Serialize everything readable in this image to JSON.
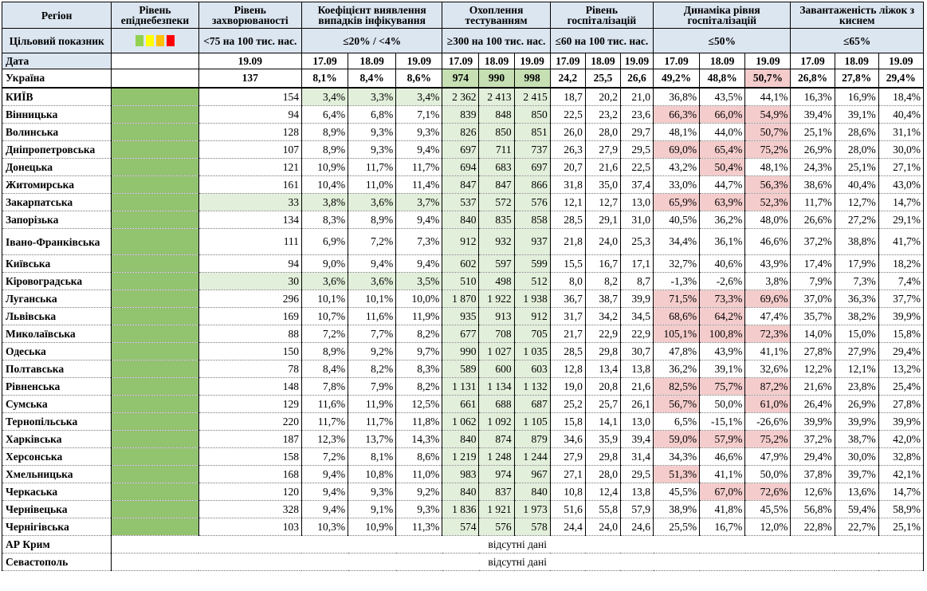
{
  "headers": {
    "region": "Регіон",
    "epid_level": "Рівень епіднебезпеки",
    "morbidity": "Рівень захворюваності",
    "detection": "Коефіцієнт виявлення випадків інфікування",
    "testing": "Охоплення тестуванням",
    "hosp_level": "Рівень госпіталізацій",
    "hosp_dyn": "Динаміка рівня госпіталізацій",
    "oxygen": "Завантаженість ліжок з киснем"
  },
  "targets": {
    "label": "Цільовий показник",
    "legend_colors": [
      "#92d050",
      "#ffff00",
      "#ffc000",
      "#ff0000"
    ],
    "morbidity": "<75 на 100 тис. нас.",
    "detection": "≤20% / <4%",
    "testing": "≥300 на 100 тис. нас.",
    "hosp_level": "≤60 на 100 тис. нас.",
    "hosp_dyn": "≤50%",
    "oxygen": "≤65%"
  },
  "dates": {
    "label": "Дата",
    "morbidity": "19.09",
    "d1": "17.09",
    "d2": "18.09",
    "d3": "19.09"
  },
  "ukraine": {
    "name": "Україна",
    "morbidity": "137",
    "detection": [
      "8,1%",
      "8,4%",
      "8,6%"
    ],
    "testing": [
      "974",
      "990",
      "998"
    ],
    "hosp_level": [
      "24,2",
      "25,5",
      "26,6"
    ],
    "hosp_dyn": [
      "49,2%",
      "48,8%",
      "50,7%"
    ],
    "oxygen": [
      "26,8%",
      "27,8%",
      "29,4%"
    ]
  },
  "rows": [
    {
      "name": "КИЇВ",
      "morbidity": "154",
      "detection": [
        "3,4%",
        "3,3%",
        "3,4%"
      ],
      "testing": [
        "2 362",
        "2 413",
        "2 415"
      ],
      "hosp_level": [
        "18,7",
        "20,2",
        "21,0"
      ],
      "hosp_dyn": [
        "36,8%",
        "43,5%",
        "44,1%"
      ],
      "oxygen": [
        "16,3%",
        "16,9%",
        "18,4%"
      ]
    },
    {
      "name": "Вінницька",
      "morbidity": "94",
      "detection": [
        "6,4%",
        "6,8%",
        "7,1%"
      ],
      "testing": [
        "839",
        "848",
        "850"
      ],
      "hosp_level": [
        "22,5",
        "23,2",
        "23,6"
      ],
      "hosp_dyn": [
        "66,3%",
        "66,0%",
        "54,9%"
      ],
      "oxygen": [
        "39,4%",
        "39,1%",
        "40,4%"
      ]
    },
    {
      "name": "Волинська",
      "morbidity": "128",
      "detection": [
        "8,9%",
        "9,3%",
        "9,3%"
      ],
      "testing": [
        "826",
        "850",
        "851"
      ],
      "hosp_level": [
        "26,0",
        "28,0",
        "29,7"
      ],
      "hosp_dyn": [
        "48,1%",
        "44,0%",
        "50,7%"
      ],
      "oxygen": [
        "25,1%",
        "28,6%",
        "31,1%"
      ]
    },
    {
      "name": "Дніпропетровська",
      "morbidity": "107",
      "detection": [
        "8,9%",
        "9,3%",
        "9,4%"
      ],
      "testing": [
        "697",
        "711",
        "737"
      ],
      "hosp_level": [
        "26,3",
        "27,9",
        "29,5"
      ],
      "hosp_dyn": [
        "69,0%",
        "65,4%",
        "75,2%"
      ],
      "oxygen": [
        "26,9%",
        "28,0%",
        "30,0%"
      ]
    },
    {
      "name": "Донецька",
      "morbidity": "121",
      "detection": [
        "10,9%",
        "11,7%",
        "11,7%"
      ],
      "testing": [
        "694",
        "683",
        "697"
      ],
      "hosp_level": [
        "20,7",
        "21,6",
        "22,5"
      ],
      "hosp_dyn": [
        "43,2%",
        "50,4%",
        "48,1%"
      ],
      "oxygen": [
        "24,3%",
        "25,1%",
        "27,1%"
      ]
    },
    {
      "name": "Житомирська",
      "morbidity": "161",
      "detection": [
        "10,4%",
        "11,0%",
        "11,4%"
      ],
      "testing": [
        "847",
        "847",
        "866"
      ],
      "hosp_level": [
        "31,8",
        "35,0",
        "37,4"
      ],
      "hosp_dyn": [
        "33,0%",
        "44,7%",
        "56,3%"
      ],
      "oxygen": [
        "38,6%",
        "40,4%",
        "43,0%"
      ]
    },
    {
      "name": "Закарпатська",
      "morbidity": "33",
      "detection": [
        "3,8%",
        "3,6%",
        "3,7%"
      ],
      "testing": [
        "537",
        "572",
        "576"
      ],
      "hosp_level": [
        "12,1",
        "12,7",
        "13,0"
      ],
      "hosp_dyn": [
        "65,9%",
        "63,9%",
        "52,3%"
      ],
      "oxygen": [
        "11,7%",
        "12,7%",
        "14,7%"
      ]
    },
    {
      "name": "Запорізька",
      "morbidity": "134",
      "detection": [
        "8,3%",
        "8,9%",
        "9,4%"
      ],
      "testing": [
        "840",
        "835",
        "858"
      ],
      "hosp_level": [
        "28,5",
        "29,1",
        "31,0"
      ],
      "hosp_dyn": [
        "40,5%",
        "36,2%",
        "48,0%"
      ],
      "oxygen": [
        "26,6%",
        "27,2%",
        "29,1%"
      ]
    },
    {
      "name": "Івано-Франківська",
      "morbidity": "111",
      "detection": [
        "6,9%",
        "7,2%",
        "7,3%"
      ],
      "testing": [
        "912",
        "932",
        "937"
      ],
      "hosp_level": [
        "21,8",
        "24,0",
        "25,3"
      ],
      "hosp_dyn": [
        "34,4%",
        "36,1%",
        "46,6%"
      ],
      "oxygen": [
        "37,2%",
        "38,8%",
        "41,7%"
      ]
    },
    {
      "name": "Київська",
      "morbidity": "94",
      "detection": [
        "9,0%",
        "9,4%",
        "9,4%"
      ],
      "testing": [
        "602",
        "597",
        "599"
      ],
      "hosp_level": [
        "15,5",
        "16,7",
        "17,1"
      ],
      "hosp_dyn": [
        "32,7%",
        "40,6%",
        "43,9%"
      ],
      "oxygen": [
        "17,4%",
        "17,9%",
        "18,2%"
      ]
    },
    {
      "name": "Кіровоградська",
      "morbidity": "30",
      "detection": [
        "3,6%",
        "3,6%",
        "3,5%"
      ],
      "testing": [
        "510",
        "498",
        "512"
      ],
      "hosp_level": [
        "8,0",
        "8,2",
        "8,7"
      ],
      "hosp_dyn": [
        "-1,3%",
        "-2,6%",
        "3,8%"
      ],
      "oxygen": [
        "7,9%",
        "7,3%",
        "7,4%"
      ]
    },
    {
      "name": "Луганська",
      "morbidity": "296",
      "detection": [
        "10,1%",
        "10,1%",
        "10,0%"
      ],
      "testing": [
        "1 870",
        "1 922",
        "1 938"
      ],
      "hosp_level": [
        "36,7",
        "38,7",
        "39,9"
      ],
      "hosp_dyn": [
        "71,5%",
        "73,3%",
        "69,6%"
      ],
      "oxygen": [
        "37,0%",
        "36,3%",
        "37,7%"
      ]
    },
    {
      "name": "Львівська",
      "morbidity": "169",
      "detection": [
        "10,7%",
        "11,6%",
        "11,9%"
      ],
      "testing": [
        "935",
        "913",
        "912"
      ],
      "hosp_level": [
        "31,7",
        "34,2",
        "34,5"
      ],
      "hosp_dyn": [
        "68,6%",
        "64,2%",
        "47,4%"
      ],
      "oxygen": [
        "35,7%",
        "38,2%",
        "39,9%"
      ]
    },
    {
      "name": "Миколаївська",
      "morbidity": "88",
      "detection": [
        "7,2%",
        "7,7%",
        "8,2%"
      ],
      "testing": [
        "677",
        "708",
        "705"
      ],
      "hosp_level": [
        "21,7",
        "22,9",
        "22,9"
      ],
      "hosp_dyn": [
        "105,1%",
        "100,8%",
        "72,3%"
      ],
      "oxygen": [
        "14,0%",
        "15,0%",
        "15,8%"
      ]
    },
    {
      "name": "Одеська",
      "morbidity": "150",
      "detection": [
        "8,9%",
        "9,2%",
        "9,7%"
      ],
      "testing": [
        "990",
        "1 027",
        "1 035"
      ],
      "hosp_level": [
        "28,5",
        "29,8",
        "30,7"
      ],
      "hosp_dyn": [
        "47,8%",
        "43,9%",
        "41,1%"
      ],
      "oxygen": [
        "27,8%",
        "27,9%",
        "29,4%"
      ]
    },
    {
      "name": "Полтавська",
      "morbidity": "78",
      "detection": [
        "8,4%",
        "8,2%",
        "8,3%"
      ],
      "testing": [
        "589",
        "600",
        "603"
      ],
      "hosp_level": [
        "12,8",
        "13,4",
        "13,8"
      ],
      "hosp_dyn": [
        "36,2%",
        "39,1%",
        "32,6%"
      ],
      "oxygen": [
        "12,2%",
        "12,1%",
        "13,2%"
      ]
    },
    {
      "name": "Рівненська",
      "morbidity": "148",
      "detection": [
        "7,8%",
        "7,9%",
        "8,2%"
      ],
      "testing": [
        "1 131",
        "1 134",
        "1 132"
      ],
      "hosp_level": [
        "19,0",
        "20,8",
        "21,6"
      ],
      "hosp_dyn": [
        "82,5%",
        "75,7%",
        "87,2%"
      ],
      "oxygen": [
        "21,6%",
        "23,8%",
        "25,4%"
      ]
    },
    {
      "name": "Сумська",
      "morbidity": "129",
      "detection": [
        "11,6%",
        "11,9%",
        "12,5%"
      ],
      "testing": [
        "661",
        "688",
        "687"
      ],
      "hosp_level": [
        "25,2",
        "25,7",
        "26,1"
      ],
      "hosp_dyn": [
        "56,7%",
        "50,0%",
        "61,0%"
      ],
      "oxygen": [
        "26,4%",
        "26,9%",
        "27,8%"
      ]
    },
    {
      "name": "Тернопільська",
      "morbidity": "220",
      "detection": [
        "11,7%",
        "11,7%",
        "11,8%"
      ],
      "testing": [
        "1 062",
        "1 092",
        "1 105"
      ],
      "hosp_level": [
        "15,8",
        "14,1",
        "13,0"
      ],
      "hosp_dyn": [
        "6,5%",
        "-15,1%",
        "-26,6%"
      ],
      "oxygen": [
        "39,9%",
        "39,9%",
        "39,9%"
      ]
    },
    {
      "name": "Харківська",
      "morbidity": "187",
      "detection": [
        "12,3%",
        "13,7%",
        "14,3%"
      ],
      "testing": [
        "840",
        "874",
        "879"
      ],
      "hosp_level": [
        "34,6",
        "35,9",
        "39,4"
      ],
      "hosp_dyn": [
        "59,0%",
        "57,9%",
        "75,2%"
      ],
      "oxygen": [
        "37,2%",
        "38,7%",
        "42,0%"
      ]
    },
    {
      "name": "Херсонська",
      "morbidity": "158",
      "detection": [
        "7,2%",
        "8,1%",
        "8,6%"
      ],
      "testing": [
        "1 219",
        "1 248",
        "1 244"
      ],
      "hosp_level": [
        "27,9",
        "29,8",
        "31,4"
      ],
      "hosp_dyn": [
        "34,3%",
        "46,6%",
        "47,9%"
      ],
      "oxygen": [
        "29,4%",
        "30,0%",
        "32,8%"
      ]
    },
    {
      "name": "Хмельницька",
      "morbidity": "168",
      "detection": [
        "9,4%",
        "10,8%",
        "11,0%"
      ],
      "testing": [
        "983",
        "974",
        "967"
      ],
      "hosp_level": [
        "27,1",
        "28,0",
        "29,5"
      ],
      "hosp_dyn": [
        "51,3%",
        "41,1%",
        "50,0%"
      ],
      "oxygen": [
        "37,8%",
        "39,7%",
        "42,1%"
      ]
    },
    {
      "name": "Черкаська",
      "morbidity": "120",
      "detection": [
        "9,4%",
        "9,3%",
        "9,2%"
      ],
      "testing": [
        "840",
        "837",
        "840"
      ],
      "hosp_level": [
        "10,8",
        "12,4",
        "13,8"
      ],
      "hosp_dyn": [
        "45,5%",
        "67,0%",
        "72,6%"
      ],
      "oxygen": [
        "12,6%",
        "13,6%",
        "14,7%"
      ]
    },
    {
      "name": "Чернівецька",
      "morbidity": "328",
      "detection": [
        "9,4%",
        "9,1%",
        "9,3%"
      ],
      "testing": [
        "1 836",
        "1 921",
        "1 973"
      ],
      "hosp_level": [
        "51,6",
        "55,8",
        "57,9"
      ],
      "hosp_dyn": [
        "38,9%",
        "41,8%",
        "45,5%"
      ],
      "oxygen": [
        "56,8%",
        "59,4%",
        "58,9%"
      ]
    },
    {
      "name": "Чернігівська",
      "morbidity": "103",
      "detection": [
        "10,3%",
        "10,9%",
        "11,3%"
      ],
      "testing": [
        "574",
        "576",
        "578"
      ],
      "hosp_level": [
        "24,4",
        "24,0",
        "24,6"
      ],
      "hosp_dyn": [
        "25,5%",
        "16,7%",
        "12,0%"
      ],
      "oxygen": [
        "22,8%",
        "22,7%",
        "25,1%"
      ]
    }
  ],
  "nodata_rows": [
    {
      "name": "АР Крим",
      "text": "відсутні дані"
    },
    {
      "name": "Севастополь",
      "text": "відсутні дані"
    }
  ]
}
